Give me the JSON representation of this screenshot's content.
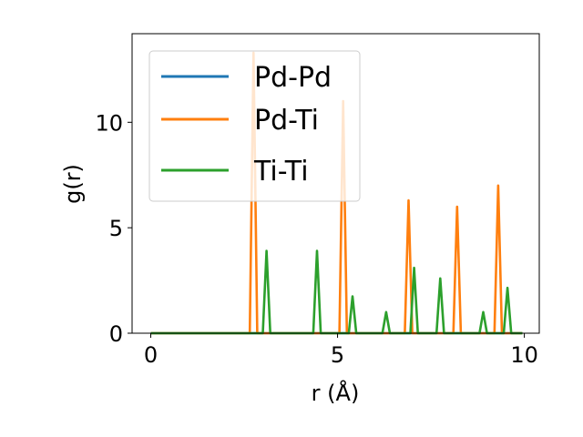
{
  "chart_data": {
    "type": "line",
    "xlabel": "r (Å)",
    "ylabel": "g(r)",
    "xlim": [
      -0.5,
      10.4
    ],
    "ylim": [
      0,
      14.2
    ],
    "xticks": [
      0,
      5,
      10
    ],
    "yticks": [
      0,
      5,
      10
    ],
    "xtick_labels": [
      "0",
      "5",
      "10"
    ],
    "ytick_labels": [
      "0",
      "5",
      "10"
    ],
    "grid": false,
    "legend_position": "top-left",
    "series": [
      {
        "name": "Pd-Pd",
        "color": "#1f77b4",
        "x": [
          0,
          9.95
        ],
        "y": [
          0,
          0
        ]
      },
      {
        "name": "Pd-Ti",
        "color": "#ff7f0e",
        "x": [
          0,
          2.65,
          2.75,
          2.85,
          5.05,
          5.15,
          5.25,
          6.8,
          6.9,
          7.0,
          8.1,
          8.2,
          8.3,
          9.2,
          9.3,
          9.4,
          9.95
        ],
        "y": [
          0,
          0,
          13.3,
          0,
          0,
          11.0,
          0,
          0,
          6.3,
          0,
          0,
          6.0,
          0,
          0,
          7.0,
          0,
          0
        ]
      },
      {
        "name": "Ti-Ti",
        "color": "#2ca02c",
        "x": [
          0,
          3.0,
          3.1,
          3.2,
          4.35,
          4.45,
          4.55,
          5.3,
          5.4,
          5.5,
          6.2,
          6.3,
          6.4,
          6.95,
          7.05,
          7.15,
          7.65,
          7.75,
          7.85,
          8.8,
          8.9,
          9.0,
          9.45,
          9.55,
          9.65,
          9.95
        ],
        "y": [
          0,
          0,
          3.9,
          0,
          0,
          3.9,
          0,
          0,
          1.75,
          0,
          0,
          1.0,
          0,
          0,
          3.1,
          0,
          0,
          2.6,
          0,
          0,
          1.0,
          0,
          0,
          2.15,
          0,
          0
        ]
      }
    ]
  }
}
